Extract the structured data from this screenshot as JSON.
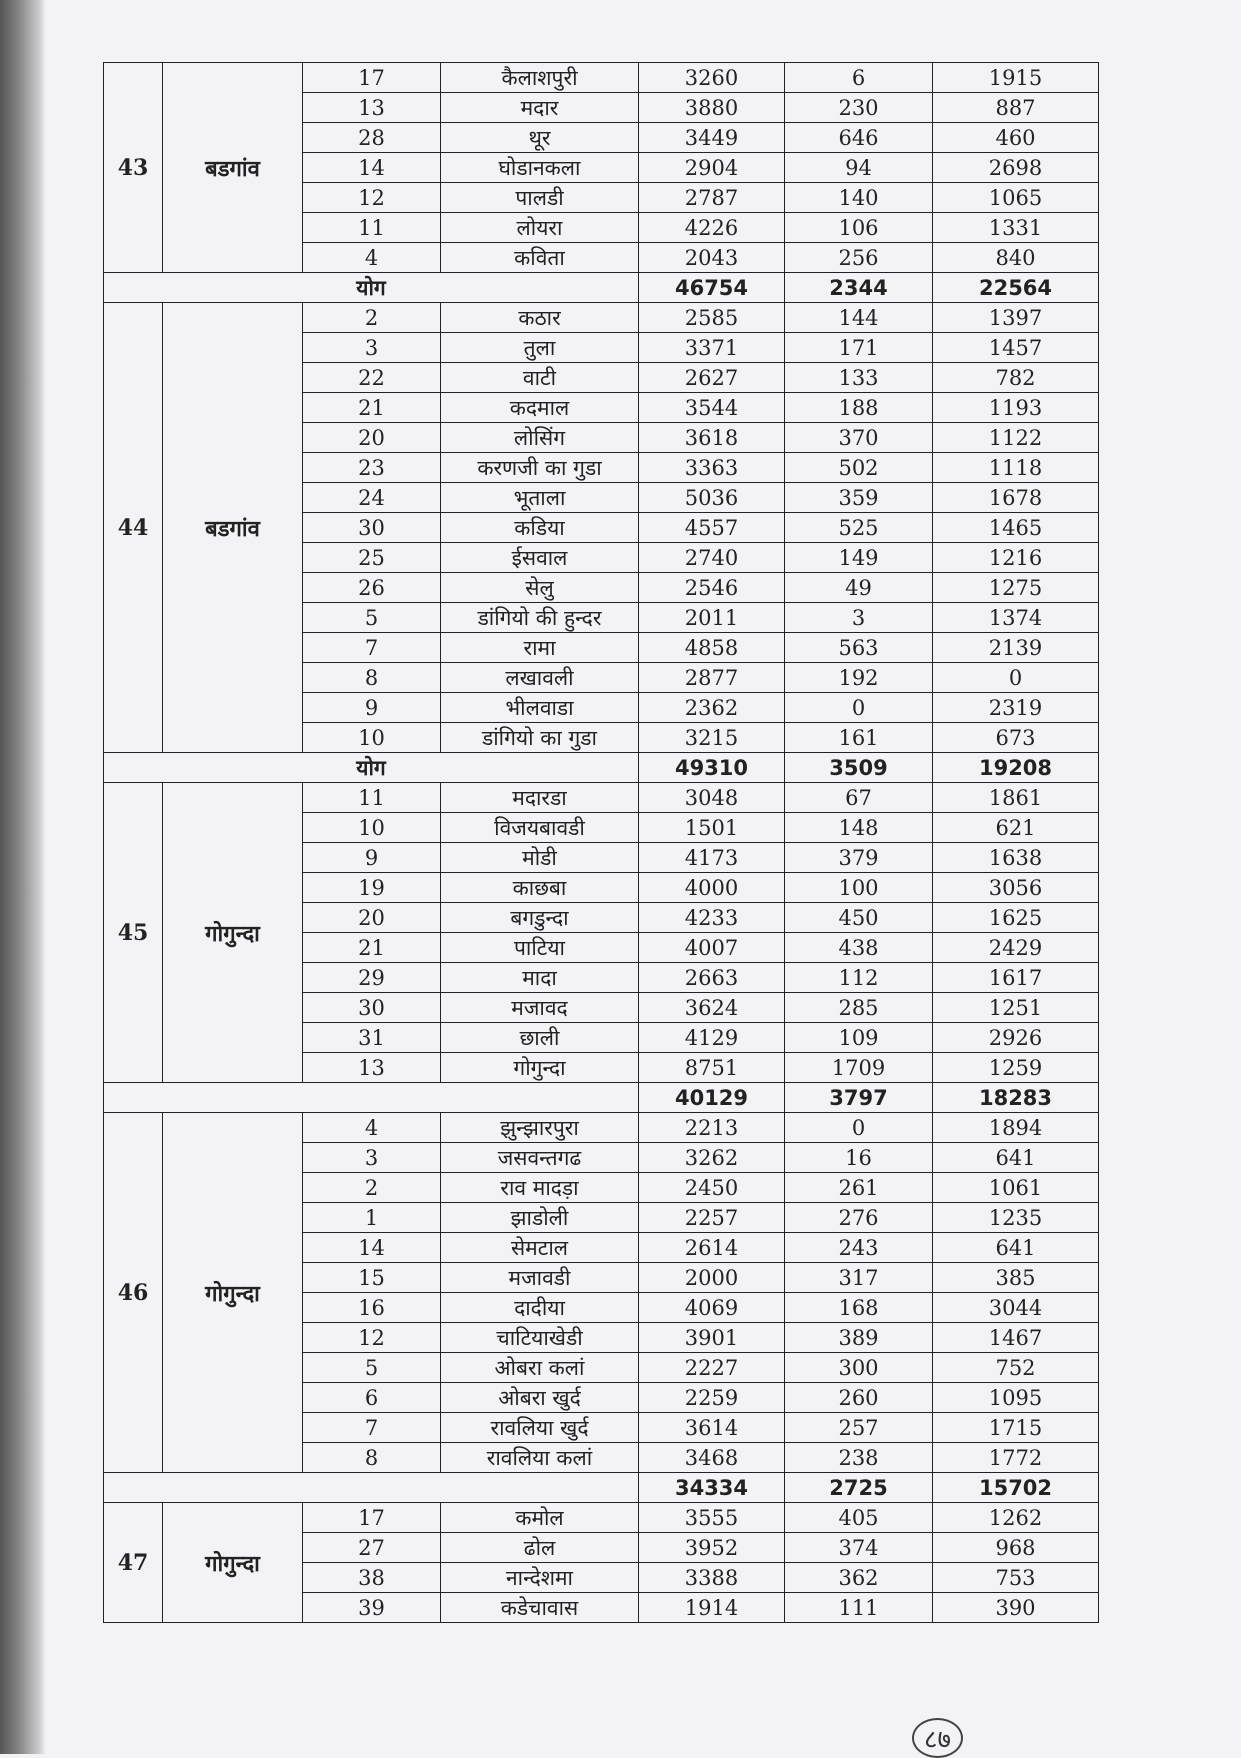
{
  "groups": [
    {
      "id": 43,
      "block": "बडगांव",
      "rows": [
        [
          17,
          "कैलाशपुरी",
          3260,
          6,
          1915
        ],
        [
          13,
          "मदार",
          3880,
          230,
          887
        ],
        [
          28,
          "थूर",
          3449,
          646,
          460
        ],
        [
          14,
          "घोडानकला",
          2904,
          94,
          2698
        ],
        [
          12,
          "पालडी",
          2787,
          140,
          1065
        ],
        [
          11,
          "लोयरा",
          4226,
          106,
          1331
        ],
        [
          4,
          "कविता",
          2043,
          256,
          840
        ]
      ],
      "total": {
        "label": "योग",
        "values": [
          46754,
          2344,
          22564
        ]
      }
    },
    {
      "id": 44,
      "block": "बडगांव",
      "rows": [
        [
          2,
          "कठार",
          2585,
          144,
          1397
        ],
        [
          3,
          "तुला",
          3371,
          171,
          1457
        ],
        [
          22,
          "वाटी",
          2627,
          133,
          782
        ],
        [
          21,
          "कदमाल",
          3544,
          188,
          1193
        ],
        [
          20,
          "लोसिंग",
          3618,
          370,
          1122
        ],
        [
          23,
          "करणजी का गुडा",
          3363,
          502,
          1118
        ],
        [
          24,
          "भूताला",
          5036,
          359,
          1678
        ],
        [
          30,
          "कडिया",
          4557,
          525,
          1465
        ],
        [
          25,
          "ईसवाल",
          2740,
          149,
          1216
        ],
        [
          26,
          "सेलु",
          2546,
          49,
          1275
        ],
        [
          5,
          "डांगियो की हुन्दर",
          2011,
          3,
          1374
        ],
        [
          7,
          "रामा",
          4858,
          563,
          2139
        ],
        [
          8,
          "लखावली",
          2877,
          192,
          0
        ],
        [
          9,
          "भीलवाडा",
          2362,
          0,
          2319
        ],
        [
          10,
          "डांगियो का गुडा",
          3215,
          161,
          673
        ]
      ],
      "total": {
        "label": "योग",
        "values": [
          49310,
          3509,
          19208
        ]
      }
    },
    {
      "id": 45,
      "block": "गोगुन्दा",
      "rows": [
        [
          11,
          "मदारडा",
          3048,
          67,
          1861
        ],
        [
          10,
          "विजयबावडी",
          1501,
          148,
          621
        ],
        [
          9,
          "मोडी",
          4173,
          379,
          1638
        ],
        [
          19,
          "काछबा",
          4000,
          100,
          3056
        ],
        [
          20,
          "बगडुन्दा",
          4233,
          450,
          1625
        ],
        [
          21,
          "पाटिया",
          4007,
          438,
          2429
        ],
        [
          29,
          "मादा",
          2663,
          112,
          1617
        ],
        [
          30,
          "मजावद",
          3624,
          285,
          1251
        ],
        [
          31,
          "छाली",
          4129,
          109,
          2926
        ],
        [
          13,
          "गोगुन्दा",
          8751,
          1709,
          1259
        ]
      ],
      "total": {
        "values": [
          40129,
          3797,
          18283
        ]
      }
    },
    {
      "id": 46,
      "block": "गोगुन्दा",
      "rows": [
        [
          4,
          "झुन्झारपुरा",
          2213,
          0,
          1894
        ],
        [
          3,
          "जसवन्तगढ",
          3262,
          16,
          641
        ],
        [
          2,
          "राव मादड़ा",
          2450,
          261,
          1061
        ],
        [
          1,
          "झाडोली",
          2257,
          276,
          1235
        ],
        [
          14,
          "सेमटाल",
          2614,
          243,
          641
        ],
        [
          15,
          "मजावडी",
          2000,
          317,
          385
        ],
        [
          16,
          "दादीया",
          4069,
          168,
          3044
        ],
        [
          12,
          "चाटियाखेडी",
          3901,
          389,
          1467
        ],
        [
          5,
          "ओबरा कलां",
          2227,
          300,
          752
        ],
        [
          6,
          "ओबरा खुर्द",
          2259,
          260,
          1095
        ],
        [
          7,
          "रावलिया खुर्द",
          3614,
          257,
          1715
        ],
        [
          8,
          "रावलिया कलां",
          3468,
          238,
          1772
        ]
      ],
      "total": {
        "values": [
          34334,
          2725,
          15702
        ]
      }
    },
    {
      "id": 47,
      "block": "गोगुन्दा",
      "rows": [
        [
          17,
          "कमोल",
          3555,
          405,
          1262
        ],
        [
          27,
          "ढोल",
          3952,
          374,
          968
        ],
        [
          38,
          "नान्देशमा",
          3388,
          362,
          753
        ],
        [
          39,
          "कडेचावास",
          1914,
          111,
          390
        ]
      ]
    }
  ],
  "page_mark": "८७"
}
